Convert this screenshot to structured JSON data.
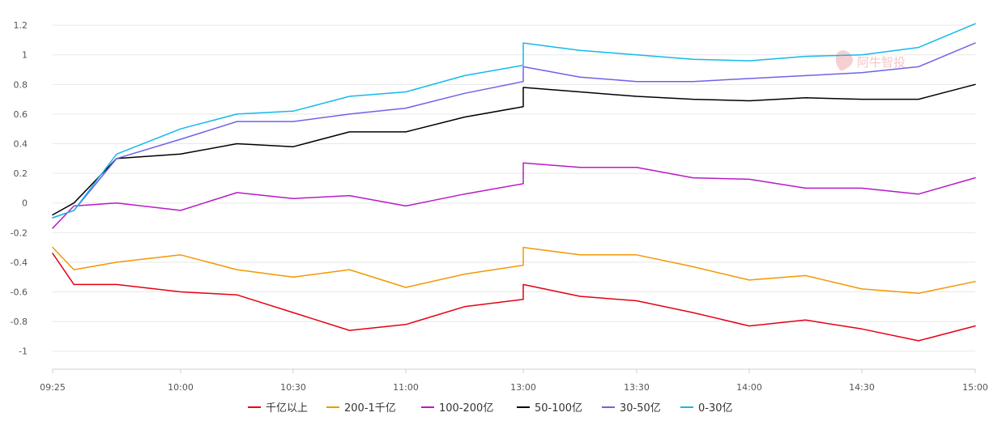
{
  "chart_data": {
    "type": "line",
    "title": "",
    "xlabel": "",
    "ylabel": "",
    "ylim": [
      -1.1,
      1.25
    ],
    "yticks": [
      -1,
      -0.8,
      -0.6,
      -0.4,
      -0.2,
      0,
      0.2,
      0.4,
      0.6,
      0.8,
      1,
      1.2
    ],
    "ytick_labels": [
      "-1",
      "-0.8",
      "-0.6",
      "-0.4",
      "-0.2",
      "0",
      "0.2",
      "0.4",
      "0.6",
      "0.8",
      "1",
      "1.2"
    ],
    "x": [
      "09:25",
      "09:35",
      "09:45",
      "10:00",
      "10:15",
      "10:30",
      "10:45",
      "11:00",
      "11:15",
      "11:30",
      "13:00",
      "13:15",
      "13:30",
      "13:45",
      "14:00",
      "14:15",
      "14:30",
      "14:45",
      "15:00"
    ],
    "xtick_labels": [
      "09:25",
      "10:00",
      "10:30",
      "11:00",
      "13:00",
      "13:30",
      "14:00",
      "14:30",
      "15:00"
    ],
    "grid": true,
    "legend": "bottom",
    "series": [
      {
        "name": "千亿以上",
        "color": "#e60012",
        "values": [
          -0.34,
          -0.55,
          -0.55,
          -0.6,
          -0.62,
          -0.74,
          -0.86,
          -0.82,
          -0.7,
          -0.65,
          -0.55,
          -0.63,
          -0.66,
          -0.74,
          -0.83,
          -0.79,
          -0.85,
          -0.93,
          -0.83
        ]
      },
      {
        "name": "200-1千亿",
        "color": "#f39800",
        "values": [
          -0.3,
          -0.45,
          -0.4,
          -0.35,
          -0.45,
          -0.5,
          -0.45,
          -0.57,
          -0.48,
          -0.42,
          -0.3,
          -0.35,
          -0.35,
          -0.43,
          -0.52,
          -0.49,
          -0.58,
          -0.61,
          -0.53
        ]
      },
      {
        "name": "100-200亿",
        "color": "#b81bc7",
        "values": [
          -0.17,
          -0.02,
          0,
          -0.05,
          0.07,
          0.03,
          0.05,
          -0.02,
          0.06,
          0.13,
          0.27,
          0.24,
          0.24,
          0.17,
          0.16,
          0.1,
          0.1,
          0.06,
          0.17
        ]
      },
      {
        "name": "50-100亿",
        "color": "#000000",
        "values": [
          -0.08,
          0.0,
          0.3,
          0.33,
          0.4,
          0.38,
          0.48,
          0.48,
          0.58,
          0.65,
          0.78,
          0.75,
          0.72,
          0.7,
          0.69,
          0.71,
          0.7,
          0.7,
          0.8
        ]
      },
      {
        "name": "30-50亿",
        "color": "#6f63e8",
        "values": [
          -0.1,
          -0.05,
          0.3,
          0.43,
          0.55,
          0.55,
          0.6,
          0.64,
          0.74,
          0.82,
          0.92,
          0.85,
          0.82,
          0.82,
          0.84,
          0.86,
          0.88,
          0.92,
          1.08
        ]
      },
      {
        "name": "0-30亿",
        "color": "#14b9ec",
        "values": [
          -0.1,
          -0.05,
          0.33,
          0.5,
          0.6,
          0.62,
          0.72,
          0.75,
          0.86,
          0.93,
          1.08,
          1.03,
          1.0,
          0.97,
          0.96,
          0.99,
          1.0,
          1.05,
          1.21
        ]
      }
    ]
  },
  "watermark": {
    "text": "阿牛智投"
  }
}
